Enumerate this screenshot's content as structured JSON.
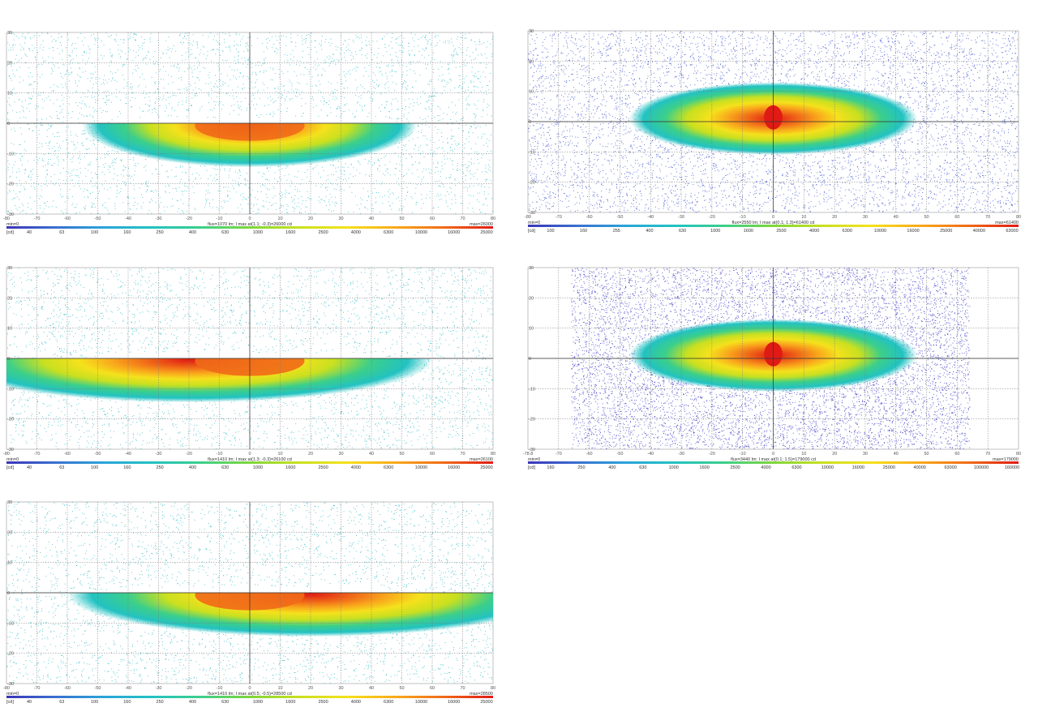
{
  "palette": [
    "#3a34b8",
    "#3a6fd0",
    "#2aa4d8",
    "#22c2c2",
    "#3ccf8a",
    "#7ed63a",
    "#c8e020",
    "#f5e11c",
    "#f9a91c",
    "#f06a18",
    "#e01a14"
  ],
  "chart_data": [
    {
      "id": "p1",
      "type": "heatmap",
      "variant": "half",
      "xlim": [
        -80,
        80
      ],
      "ylim": [
        -30,
        30
      ],
      "x_ticks": [
        "-80",
        "-70",
        "-60",
        "-50",
        "-40",
        "-30",
        "-20",
        "-10",
        "0",
        "10",
        "20",
        "30",
        "40",
        "50",
        "60",
        "70",
        "80"
      ],
      "y_ticks": [
        "30",
        "20",
        "10",
        "0",
        "-10",
        "-20",
        "-30"
      ],
      "min_label": "min=0",
      "max_label": "max=26000",
      "info": "flux=1070 lm; I max at(1.1; -0.3)=26000 cd",
      "unit": "[cd]",
      "colorbar_labels": [
        "40",
        "63",
        "100",
        "160",
        "250",
        "400",
        "630",
        "1000",
        "1600",
        "2500",
        "4000",
        "6300",
        "10000",
        "16000",
        "25000"
      ],
      "background": "#ffffff",
      "scatter_color": "#2ab8c4"
    },
    {
      "id": "p2",
      "type": "heatmap",
      "variant": "full",
      "xlim": [
        -80,
        80
      ],
      "ylim": [
        -30,
        30
      ],
      "x_ticks": [
        "-80",
        "-70",
        "-60",
        "-50",
        "-40",
        "-30",
        "-20",
        "-10",
        "0",
        "10",
        "20",
        "30",
        "40",
        "50",
        "60",
        "70",
        "80"
      ],
      "y_ticks": [
        "30",
        "20",
        "10",
        "0",
        "-10",
        "-20",
        "-30"
      ],
      "min_label": "min=0",
      "max_label": "max=61400",
      "info": "flux=2550 lm; I max at(0.1; 1.3)=61400 cd",
      "unit": "[cd]",
      "colorbar_labels": [
        "100",
        "160",
        "255",
        "400",
        "630",
        "1000",
        "1600",
        "2500",
        "4000",
        "6300",
        "10000",
        "16000",
        "25000",
        "40000",
        "63000"
      ],
      "background": "#ffffff",
      "scatter_color": "#3a4fcf"
    },
    {
      "id": "p3",
      "type": "heatmap",
      "variant": "left",
      "xlim": [
        -80,
        80
      ],
      "ylim": [
        -30,
        30
      ],
      "x_ticks": [
        "-80",
        "-70",
        "-60",
        "-50",
        "-40",
        "-30",
        "-20",
        "-10",
        "0",
        "10",
        "20",
        "30",
        "40",
        "50",
        "60",
        "70",
        "80"
      ],
      "y_ticks": [
        "30",
        "20",
        "10",
        "0",
        "-10",
        "-20",
        "-30"
      ],
      "min_label": "min=0",
      "max_label": "max=26100",
      "info": "flux=1410 lm; I max at(1.3; -0.3)=26100 cd",
      "unit": "[cd]",
      "colorbar_labels": [
        "40",
        "63",
        "100",
        "160",
        "250",
        "400",
        "630",
        "1000",
        "1600",
        "2500",
        "4000",
        "6300",
        "10000",
        "16000",
        "25000"
      ],
      "background": "#ffffff",
      "scatter_color": "#2ab8c4"
    },
    {
      "id": "p4",
      "type": "heatmap",
      "variant": "dense",
      "xlim": [
        -80,
        80
      ],
      "ylim": [
        -30,
        30
      ],
      "x_ticks": [
        "-78.8",
        "-70",
        "-60",
        "-50",
        "-40",
        "-30",
        "-20",
        "-10",
        "0",
        "10",
        "20",
        "30",
        "40",
        "50",
        "60",
        "70",
        "80"
      ],
      "y_ticks": [
        "30",
        "20",
        "10",
        "0",
        "-10",
        "-20",
        "-30"
      ],
      "min_label": "min=0",
      "max_label": "max=179000",
      "info": "flux=3440 lm; I max at(0.1; 1.5)=179000 cd",
      "unit": "[cd]",
      "colorbar_labels": [
        "160",
        "250",
        "400",
        "630",
        "1000",
        "1600",
        "2500",
        "4000",
        "6300",
        "10000",
        "16000",
        "25000",
        "40000",
        "63000",
        "100000",
        "160000"
      ],
      "background": "#ffffff",
      "scatter_color": "#3a36c6"
    },
    {
      "id": "p5",
      "type": "heatmap",
      "variant": "right",
      "xlim": [
        -80,
        80
      ],
      "ylim": [
        -30,
        30
      ],
      "x_ticks": [
        "-80",
        "-70",
        "-60",
        "-50",
        "-40",
        "-30",
        "-20",
        "-10",
        "0",
        "10",
        "20",
        "30",
        "40",
        "50",
        "60",
        "70",
        "80"
      ],
      "y_ticks": [
        "30",
        "20",
        "10",
        "0",
        "-10",
        "-20",
        "-30"
      ],
      "min_label": "min=0",
      "max_label": "max=28500",
      "info": "flux=1410 lm; I max at(0.5; -0.5)=28500 cd",
      "unit": "[cd]",
      "colorbar_labels": [
        "40",
        "63",
        "100",
        "160",
        "250",
        "400",
        "630",
        "1000",
        "1600",
        "2500",
        "4000",
        "6300",
        "10000",
        "16000",
        "25000"
      ],
      "background": "#ffffff",
      "scatter_color": "#2ab8c4"
    }
  ]
}
